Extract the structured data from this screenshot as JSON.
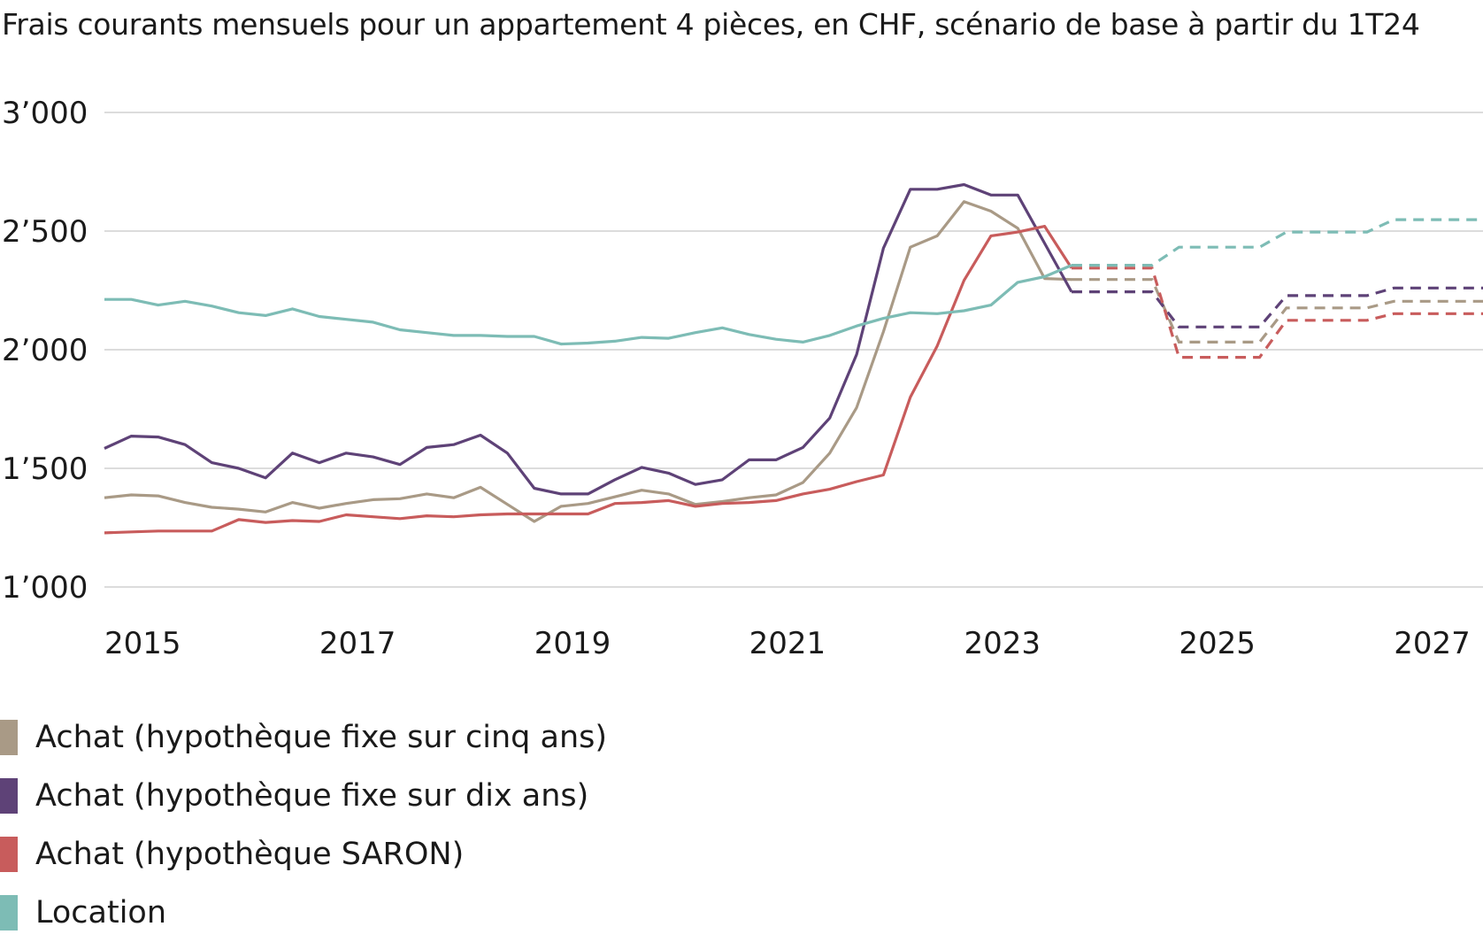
{
  "chart_data": {
    "type": "line",
    "title": "Frais courants mensuels pour un appartement 4 pièces, en CHF, scénario de base à partir du 1T24",
    "xlabel": "",
    "ylabel": "",
    "ylim": [
      1000,
      3000
    ],
    "yticks": [
      1000,
      1500,
      2000,
      2500,
      3000
    ],
    "ytick_labels": [
      "1’000",
      "1’500",
      "2’000",
      "2’500",
      "3’000"
    ],
    "xticks": [
      "2015",
      "2017",
      "2019",
      "2021",
      "2023",
      "2025",
      "2027"
    ],
    "x_start": "2015T1",
    "x_step": "quarter",
    "forecast_from_index": 36,
    "grid": true,
    "legend_position": "bottom-left",
    "series": [
      {
        "name": "Achat (hypothèque fixe sur cinq ans)",
        "color": "#a99a86",
        "values": [
          1376,
          1388,
          1384,
          1356,
          1336,
          1328,
          1316,
          1356,
          1332,
          1352,
          1368,
          1372,
          1392,
          1376,
          1420,
          1348,
          1276,
          1340,
          1352,
          1380,
          1408,
          1392,
          1348,
          1360,
          1376,
          1388,
          1440,
          1564,
          1756,
          2076,
          2432,
          2480,
          2624,
          2584,
          2512,
          2300,
          2296
        ],
        "forecast": [
          2296,
          2296,
          2296,
          2296,
          2032,
          2032,
          2032,
          2032,
          2176,
          2176,
          2176,
          2176,
          2204,
          2204,
          2204,
          2204
        ]
      },
      {
        "name": "Achat (hypothèque fixe sur dix ans)",
        "color": "#5e4277",
        "values": [
          1584,
          1636,
          1632,
          1600,
          1524,
          1500,
          1460,
          1564,
          1524,
          1564,
          1548,
          1516,
          1588,
          1600,
          1640,
          1564,
          1416,
          1392,
          1392,
          1452,
          1504,
          1480,
          1432,
          1452,
          1536,
          1536,
          1588,
          1712,
          1980,
          2428,
          2676,
          2676,
          2696,
          2652,
          2652,
          2448,
          2244
        ],
        "forecast": [
          2244,
          2244,
          2244,
          2244,
          2096,
          2096,
          2096,
          2096,
          2228,
          2228,
          2228,
          2228,
          2260,
          2260,
          2260,
          2260
        ]
      },
      {
        "name": "Achat (hypothèque SARON)",
        "color": "#c85c5c",
        "values": [
          1228,
          1232,
          1236,
          1236,
          1236,
          1284,
          1272,
          1280,
          1276,
          1304,
          1296,
          1288,
          1300,
          1296,
          1304,
          1308,
          1308,
          1308,
          1308,
          1352,
          1356,
          1364,
          1340,
          1352,
          1356,
          1364,
          1392,
          1412,
          1444,
          1472,
          1800,
          2016,
          2292,
          2480,
          2496,
          2520,
          2344
        ],
        "forecast": [
          2344,
          2344,
          2344,
          2344,
          1968,
          1968,
          1968,
          1968,
          2124,
          2124,
          2124,
          2124,
          2152,
          2152,
          2152,
          2152
        ]
      },
      {
        "name": "Location",
        "color": "#7dbcb5",
        "values": [
          2212,
          2212,
          2188,
          2204,
          2184,
          2156,
          2144,
          2172,
          2140,
          2128,
          2116,
          2084,
          2072,
          2060,
          2060,
          2056,
          2056,
          2024,
          2028,
          2036,
          2052,
          2048,
          2072,
          2092,
          2064,
          2044,
          2032,
          2060,
          2100,
          2132,
          2156,
          2152,
          2164,
          2188,
          2284,
          2308,
          2356
        ],
        "forecast": [
          2356,
          2356,
          2356,
          2356,
          2432,
          2432,
          2432,
          2432,
          2496,
          2496,
          2496,
          2496,
          2548,
          2548,
          2548,
          2548
        ]
      }
    ]
  }
}
